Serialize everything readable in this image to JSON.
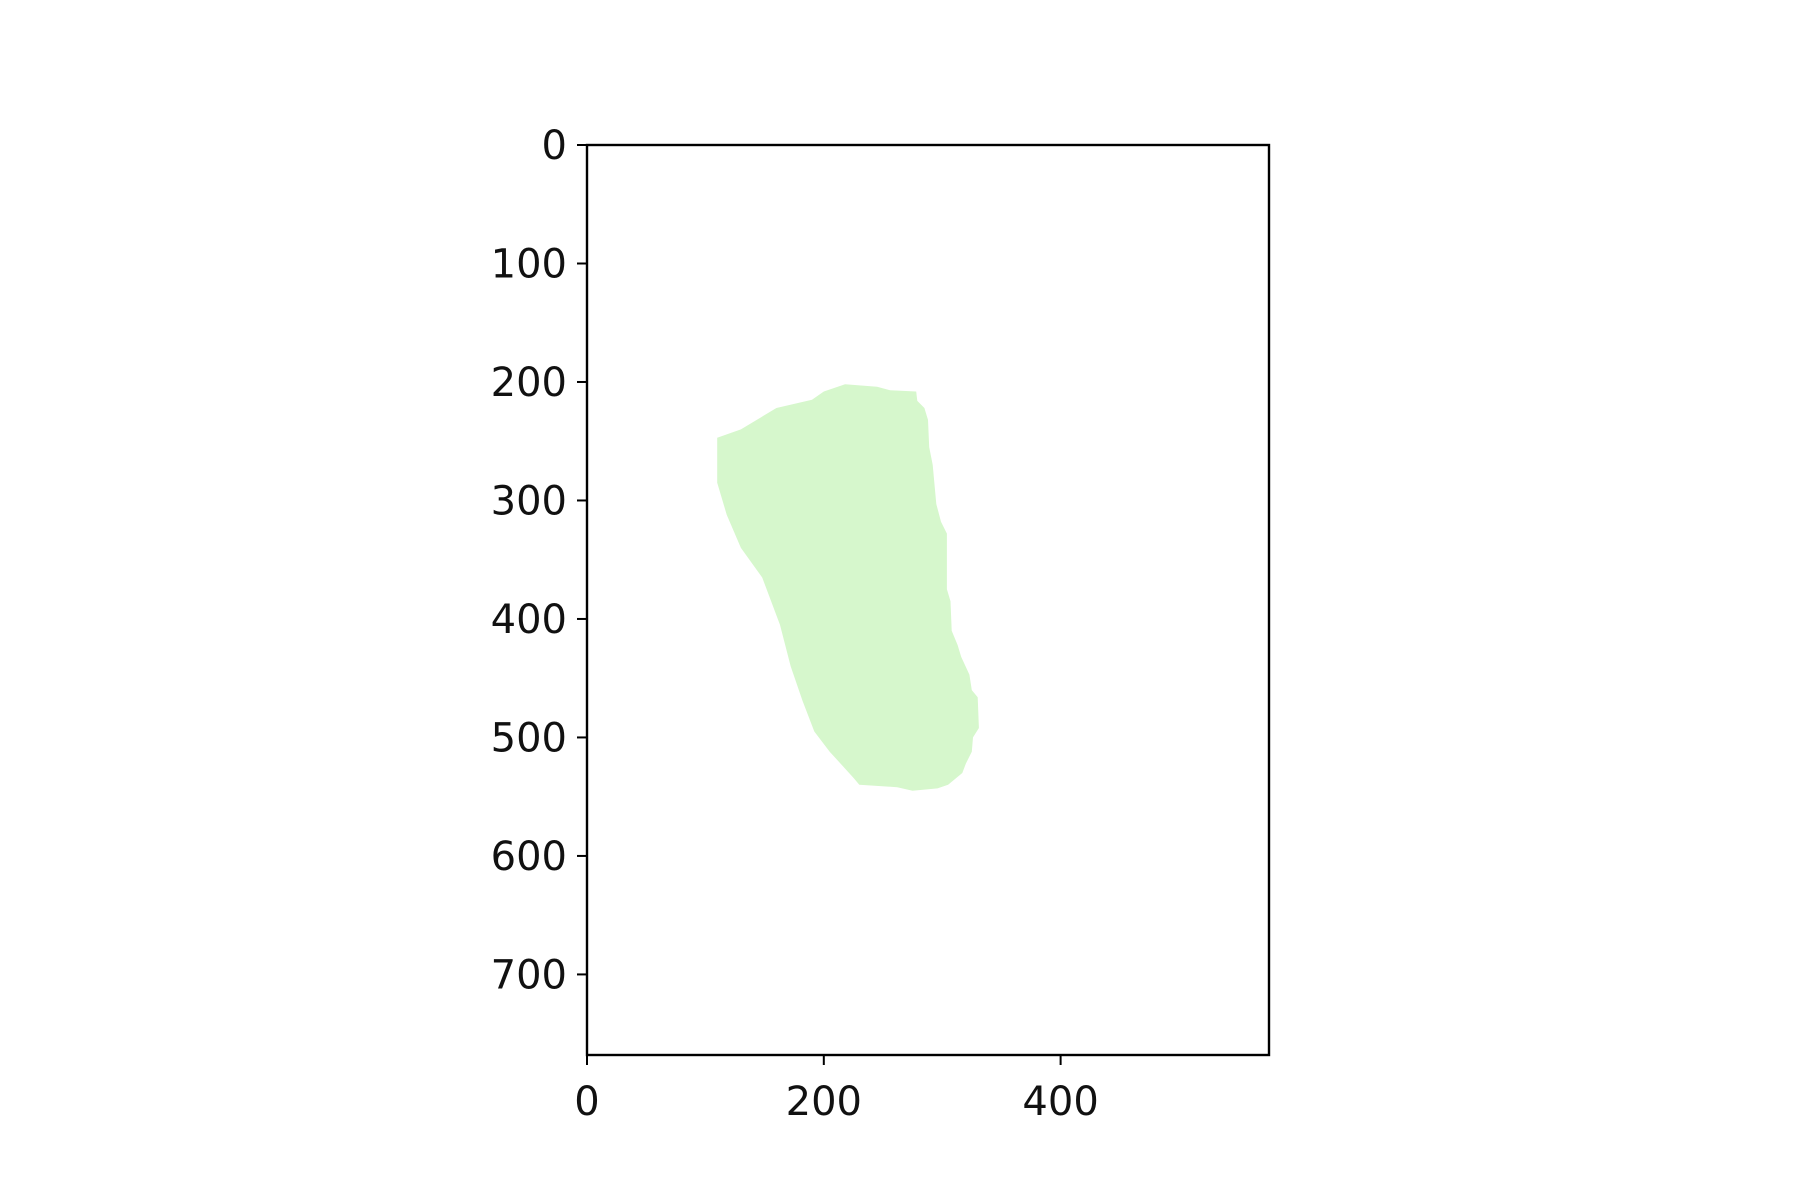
{
  "chart_data": {
    "type": "area",
    "title": "",
    "xlabel": "",
    "ylabel": "",
    "xlim": [
      0,
      576
    ],
    "ylim": [
      768,
      0
    ],
    "x_ticks": [
      0,
      200,
      400
    ],
    "y_ticks": [
      0,
      100,
      200,
      300,
      400,
      500,
      600,
      700
    ],
    "x_tick_labels": [
      "0",
      "200",
      "400"
    ],
    "y_tick_labels": [
      "0",
      "100",
      "200",
      "300",
      "400",
      "500",
      "600",
      "700"
    ],
    "y_inverted": true,
    "grid": false,
    "series": [
      {
        "fill_color": "#d6f7cc",
        "points": [
          [
            218,
            202
          ],
          [
            245,
            204
          ],
          [
            256,
            207
          ],
          [
            278,
            208
          ],
          [
            279,
            216
          ],
          [
            285,
            222
          ],
          [
            288,
            232
          ],
          [
            289,
            255
          ],
          [
            292,
            270
          ],
          [
            295,
            303
          ],
          [
            299,
            318
          ],
          [
            304,
            328
          ],
          [
            304,
            375
          ],
          [
            307,
            385
          ],
          [
            308,
            410
          ],
          [
            313,
            422
          ],
          [
            316,
            432
          ],
          [
            323,
            447
          ],
          [
            325,
            460
          ],
          [
            330,
            466
          ],
          [
            331,
            492
          ],
          [
            326,
            500
          ],
          [
            325,
            512
          ],
          [
            320,
            522
          ],
          [
            317,
            530
          ],
          [
            305,
            540
          ],
          [
            296,
            543
          ],
          [
            275,
            545
          ],
          [
            262,
            542
          ],
          [
            230,
            540
          ],
          [
            225,
            534
          ],
          [
            205,
            512
          ],
          [
            192,
            495
          ],
          [
            182,
            469
          ],
          [
            172,
            440
          ],
          [
            163,
            405
          ],
          [
            148,
            365
          ],
          [
            130,
            340
          ],
          [
            118,
            312
          ],
          [
            110,
            285
          ],
          [
            110,
            247
          ],
          [
            130,
            240
          ],
          [
            160,
            222
          ],
          [
            190,
            215
          ],
          [
            200,
            208
          ]
        ]
      }
    ]
  }
}
